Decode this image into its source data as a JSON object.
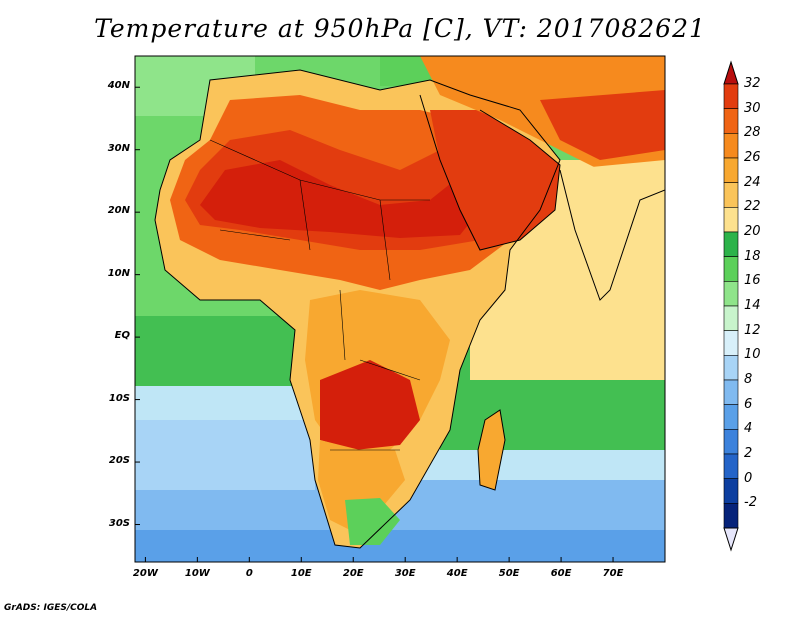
{
  "plot": {
    "title": "Temperature at 950hPa [C], VT: 2017082621",
    "credit": "GrADS: IGES/COLA"
  },
  "map": {
    "type": "filled-contour-map",
    "variable": "Temperature",
    "level": "950hPa",
    "units": "C",
    "valid_time": "2017082621",
    "lat_range": [
      -36,
      45
    ],
    "lon_range": [
      -22,
      80
    ],
    "lat_ticks": [
      {
        "value": 40,
        "label": "40N"
      },
      {
        "value": 30,
        "label": "30N"
      },
      {
        "value": 20,
        "label": "20N"
      },
      {
        "value": 10,
        "label": "10N"
      },
      {
        "value": 0,
        "label": "EQ"
      },
      {
        "value": -10,
        "label": "10S"
      },
      {
        "value": -20,
        "label": "20S"
      },
      {
        "value": -30,
        "label": "30S"
      }
    ],
    "lon_ticks": [
      {
        "value": -20,
        "label": "20W"
      },
      {
        "value": -10,
        "label": "10W"
      },
      {
        "value": 0,
        "label": "0"
      },
      {
        "value": 10,
        "label": "10E"
      },
      {
        "value": 20,
        "label": "20E"
      },
      {
        "value": 30,
        "label": "30E"
      },
      {
        "value": 40,
        "label": "40E"
      },
      {
        "value": 50,
        "label": "50E"
      },
      {
        "value": 60,
        "label": "60E"
      },
      {
        "value": 70,
        "label": "70E"
      }
    ]
  },
  "colorbar": {
    "levels": [
      "32",
      "30",
      "28",
      "26",
      "24",
      "22",
      "20",
      "18",
      "16",
      "14",
      "12",
      "10",
      "8",
      "6",
      "4",
      "2",
      "0",
      "-2"
    ],
    "colors": [
      "#b80e0e",
      "#e23c0f",
      "#f06414",
      "#f68a1e",
      "#f8a830",
      "#fac45a",
      "#fde18e",
      "#2db34a",
      "#5cd05a",
      "#8fe48a",
      "#c8f4cc",
      "#d8f0fa",
      "#a8d4f6",
      "#80baf0",
      "#5aa0e8",
      "#3c82dc",
      "#2464c8",
      "#0d3fa0",
      "#06237a"
    ],
    "top_arrow_color": "#b80e0e",
    "bottom_arrow_color": "#e6e6fb"
  }
}
